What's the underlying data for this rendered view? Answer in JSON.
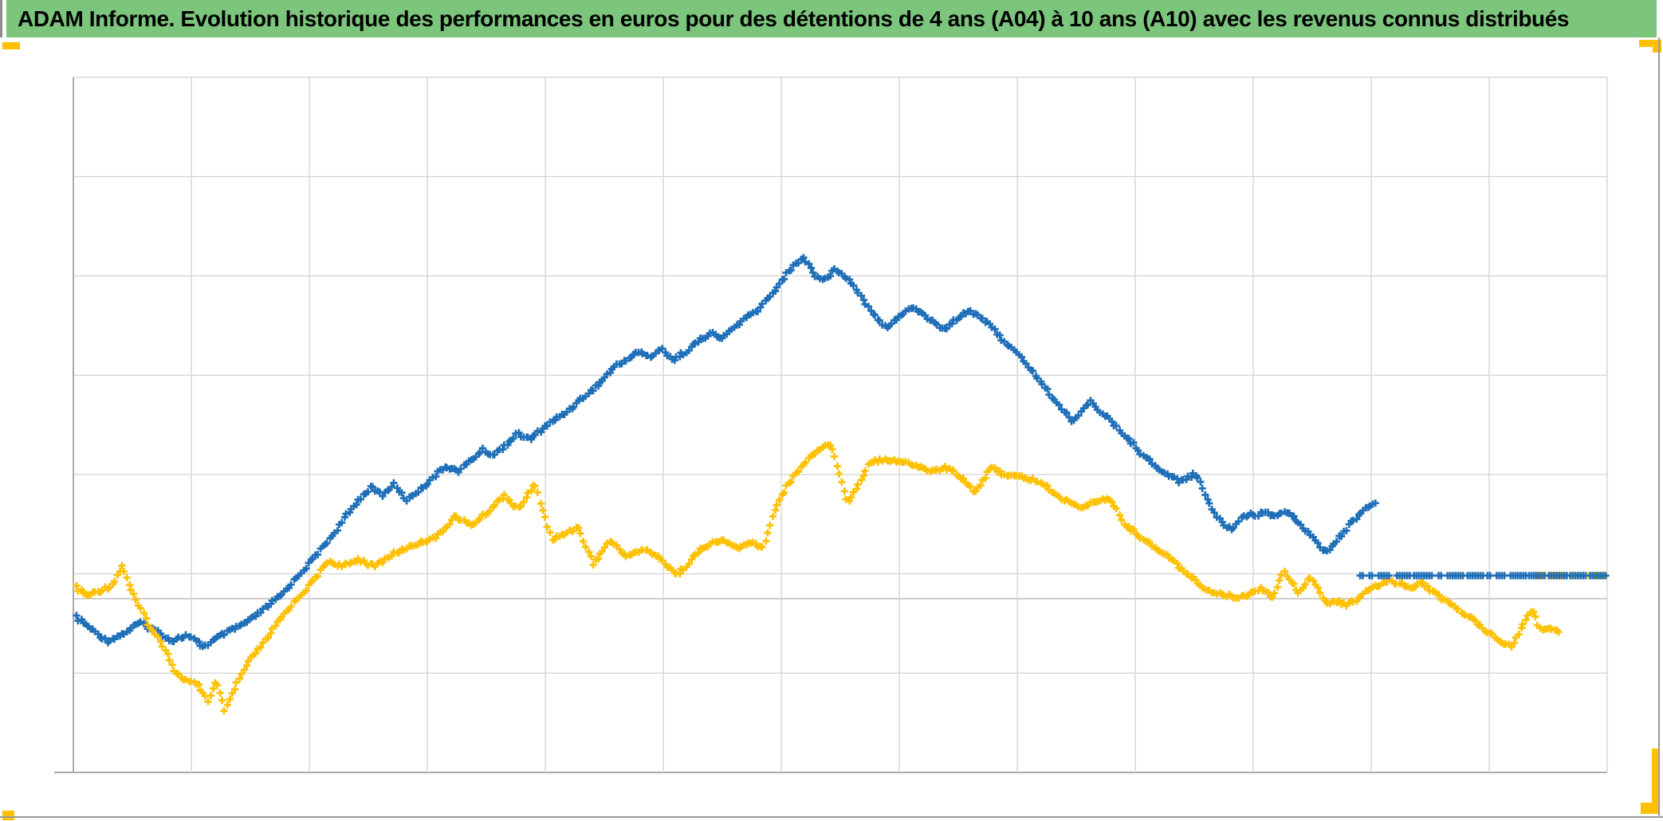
{
  "title": {
    "text": "ADAM Informe. Evolution historique des performances en euros pour des détentions de 4 ans (A04) à 10 ans (A10) avec les revenus connus distribués"
  },
  "colors": {
    "header_green": "#7CC57C",
    "title_text": "#000000",
    "series_blue": "#1E6FB8",
    "series_gold": "#FFC000",
    "gridline": "#D6D6D6",
    "plot_border": "#ABABAB",
    "zero_axis": "#C4C4C4",
    "selection_yellow": "#FFC000",
    "window_edge": "#9B9B9B"
  },
  "chart_data": {
    "type": "scatter",
    "title": "",
    "xlabel": "",
    "ylabel": "",
    "x_axis_labels": [],
    "y_axis_labels": [],
    "legend": "none",
    "marker": "plus",
    "grid": {
      "h_gridlines": 8,
      "v_gridlines": 14,
      "zero_axis_pct": 75.0
    },
    "flat_row_pct": 71.7,
    "series": [
      {
        "name": "blue",
        "points": [
          [
            0.2,
            77.7
          ],
          [
            1.2,
            79.4
          ],
          [
            2.2,
            81.1
          ],
          [
            3.3,
            80.0
          ],
          [
            4.3,
            78.5
          ],
          [
            5.4,
            79.6
          ],
          [
            6.4,
            81.1
          ],
          [
            7.4,
            80.3
          ],
          [
            8.5,
            81.9
          ],
          [
            9.5,
            80.5
          ],
          [
            10.6,
            79.2
          ],
          [
            11.6,
            78.0
          ],
          [
            12.6,
            76.2
          ],
          [
            13.7,
            74.2
          ],
          [
            14.7,
            71.6
          ],
          [
            15.7,
            69.1
          ],
          [
            16.8,
            66.2
          ],
          [
            17.8,
            63.1
          ],
          [
            18.6,
            60.8
          ],
          [
            19.4,
            59.0
          ],
          [
            20.2,
            60.1
          ],
          [
            20.9,
            58.5
          ],
          [
            21.7,
            60.8
          ],
          [
            22.8,
            59.0
          ],
          [
            23.5,
            57.4
          ],
          [
            24.3,
            55.9
          ],
          [
            25.1,
            56.7
          ],
          [
            25.9,
            55.1
          ],
          [
            26.7,
            53.6
          ],
          [
            27.4,
            54.4
          ],
          [
            28.2,
            52.8
          ],
          [
            29.0,
            51.3
          ],
          [
            29.8,
            52.1
          ],
          [
            30.6,
            50.5
          ],
          [
            31.3,
            49.4
          ],
          [
            32.1,
            48.2
          ],
          [
            32.9,
            46.7
          ],
          [
            33.7,
            45.2
          ],
          [
            34.5,
            43.6
          ],
          [
            35.2,
            41.8
          ],
          [
            36.0,
            40.7
          ],
          [
            36.8,
            39.5
          ],
          [
            37.6,
            40.2
          ],
          [
            38.4,
            39.1
          ],
          [
            39.1,
            40.7
          ],
          [
            39.9,
            39.5
          ],
          [
            40.7,
            38.1
          ],
          [
            41.5,
            36.8
          ],
          [
            42.3,
            37.6
          ],
          [
            43.0,
            36.1
          ],
          [
            43.8,
            34.7
          ],
          [
            44.6,
            33.6
          ],
          [
            45.4,
            31.5
          ],
          [
            46.2,
            29.2
          ],
          [
            46.8,
            27.6
          ],
          [
            47.2,
            26.7
          ],
          [
            47.6,
            25.9
          ],
          [
            48.0,
            27.3
          ],
          [
            48.4,
            28.5
          ],
          [
            48.9,
            29.2
          ],
          [
            49.3,
            28.4
          ],
          [
            49.7,
            27.6
          ],
          [
            50.1,
            28.1
          ],
          [
            50.5,
            29.0
          ],
          [
            50.9,
            30.1
          ],
          [
            51.4,
            31.5
          ],
          [
            51.8,
            33.0
          ],
          [
            52.2,
            34.1
          ],
          [
            52.6,
            35.1
          ],
          [
            53.0,
            35.9
          ],
          [
            53.4,
            35.3
          ],
          [
            53.8,
            34.5
          ],
          [
            54.3,
            33.8
          ],
          [
            54.7,
            33.0
          ],
          [
            55.1,
            33.6
          ],
          [
            55.5,
            34.2
          ],
          [
            55.9,
            34.9
          ],
          [
            56.3,
            35.6
          ],
          [
            56.8,
            36.3
          ],
          [
            57.2,
            35.6
          ],
          [
            57.6,
            34.7
          ],
          [
            58.0,
            34.0
          ],
          [
            58.4,
            33.6
          ],
          [
            58.8,
            34.0
          ],
          [
            59.3,
            34.7
          ],
          [
            59.7,
            35.6
          ],
          [
            60.1,
            36.5
          ],
          [
            60.5,
            37.5
          ],
          [
            60.9,
            38.4
          ],
          [
            61.3,
            39.3
          ],
          [
            61.7,
            40.2
          ],
          [
            62.2,
            41.4
          ],
          [
            62.6,
            42.5
          ],
          [
            63.0,
            43.6
          ],
          [
            63.4,
            44.8
          ],
          [
            63.8,
            45.9
          ],
          [
            64.2,
            47.1
          ],
          [
            64.7,
            48.2
          ],
          [
            65.1,
            49.4
          ],
          [
            65.5,
            48.7
          ],
          [
            65.9,
            47.5
          ],
          [
            66.3,
            46.7
          ],
          [
            66.7,
            47.5
          ],
          [
            67.2,
            48.5
          ],
          [
            67.6,
            49.4
          ],
          [
            68.0,
            50.3
          ],
          [
            68.4,
            51.3
          ],
          [
            68.8,
            52.1
          ],
          [
            69.2,
            53.0
          ],
          [
            69.6,
            54.0
          ],
          [
            70.1,
            54.9
          ],
          [
            70.5,
            55.8
          ],
          [
            70.9,
            56.5
          ],
          [
            71.3,
            57.2
          ],
          [
            71.7,
            57.6
          ],
          [
            72.1,
            58.1
          ],
          [
            72.6,
            57.6
          ],
          [
            73.0,
            57.2
          ],
          [
            73.4,
            57.6
          ],
          [
            73.8,
            59.9
          ],
          [
            74.2,
            61.7
          ],
          [
            74.6,
            63.3
          ],
          [
            75.1,
            64.5
          ],
          [
            75.5,
            65.1
          ],
          [
            75.9,
            63.9
          ],
          [
            76.3,
            63.1
          ],
          [
            76.7,
            62.8
          ],
          [
            77.1,
            63.1
          ],
          [
            77.5,
            62.4
          ],
          [
            78.0,
            62.8
          ],
          [
            78.4,
            63.1
          ],
          [
            78.8,
            62.8
          ],
          [
            79.2,
            62.4
          ],
          [
            79.6,
            63.3
          ],
          [
            80.0,
            64.3
          ],
          [
            80.5,
            65.4
          ],
          [
            80.9,
            66.6
          ],
          [
            81.3,
            67.7
          ],
          [
            81.7,
            68.2
          ],
          [
            82.1,
            67.5
          ],
          [
            82.5,
            66.3
          ],
          [
            83.0,
            65.0
          ],
          [
            83.4,
            63.8
          ],
          [
            83.8,
            62.9
          ],
          [
            84.2,
            62.2
          ],
          [
            84.6,
            61.7
          ],
          [
            84.9,
            61.5
          ]
        ],
        "flat_segments": [
          [
            83.9,
            84.2
          ],
          [
            84.5,
            84.7
          ],
          [
            85.1,
            85.9
          ],
          [
            86.3,
            87.2
          ],
          [
            87.4,
            88.6
          ],
          [
            89.0,
            89.3
          ],
          [
            89.6,
            90.7
          ],
          [
            90.9,
            91.9
          ],
          [
            92.2,
            92.5
          ],
          [
            92.8,
            93.4
          ],
          [
            93.7,
            94.7
          ],
          [
            94.9,
            95.9
          ],
          [
            96.2,
            97.4
          ],
          [
            97.6,
            98.7
          ],
          [
            98.9,
            100.0
          ]
        ]
      },
      {
        "name": "gold",
        "points": [
          [
            0.2,
            73.4
          ],
          [
            0.9,
            74.6
          ],
          [
            1.7,
            73.9
          ],
          [
            2.5,
            73.1
          ],
          [
            3.2,
            70.2
          ],
          [
            3.7,
            73.4
          ],
          [
            4.3,
            76.2
          ],
          [
            5.1,
            79.4
          ],
          [
            5.9,
            81.9
          ],
          [
            6.7,
            85.7
          ],
          [
            7.4,
            86.8
          ],
          [
            8.2,
            87.6
          ],
          [
            8.8,
            89.7
          ],
          [
            9.3,
            86.9
          ],
          [
            9.9,
            91.2
          ],
          [
            10.6,
            87.4
          ],
          [
            11.3,
            84.5
          ],
          [
            12.4,
            81.4
          ],
          [
            13.4,
            78.2
          ],
          [
            14.6,
            75.0
          ],
          [
            15.7,
            72.3
          ],
          [
            16.6,
            69.6
          ],
          [
            17.6,
            70.4
          ],
          [
            18.6,
            69.3
          ],
          [
            19.6,
            70.4
          ],
          [
            20.7,
            68.8
          ],
          [
            21.7,
            67.7
          ],
          [
            22.8,
            66.8
          ],
          [
            23.8,
            65.9
          ],
          [
            24.9,
            63.1
          ],
          [
            25.9,
            64.5
          ],
          [
            26.9,
            62.8
          ],
          [
            28.1,
            60.1
          ],
          [
            29.0,
            62.2
          ],
          [
            30.1,
            58.5
          ],
          [
            31.2,
            66.6
          ],
          [
            32.2,
            65.4
          ],
          [
            32.9,
            64.7
          ],
          [
            33.9,
            70.0
          ],
          [
            35.0,
            66.6
          ],
          [
            36.0,
            68.8
          ],
          [
            37.4,
            67.9
          ],
          [
            38.4,
            69.6
          ],
          [
            39.4,
            71.6
          ],
          [
            40.4,
            69.1
          ],
          [
            41.2,
            67.4
          ],
          [
            42.3,
            66.6
          ],
          [
            43.3,
            67.7
          ],
          [
            44.3,
            67.0
          ],
          [
            45.0,
            67.7
          ],
          [
            45.4,
            64.5
          ],
          [
            45.7,
            62.2
          ],
          [
            46.4,
            59.3
          ],
          [
            47.4,
            56.2
          ],
          [
            48.2,
            54.2
          ],
          [
            49.3,
            52.6
          ],
          [
            49.9,
            56.5
          ],
          [
            50.5,
            61.3
          ],
          [
            51.4,
            57.6
          ],
          [
            51.9,
            55.3
          ],
          [
            52.9,
            54.9
          ],
          [
            54.0,
            55.3
          ],
          [
            55.0,
            55.9
          ],
          [
            56.0,
            56.7
          ],
          [
            56.8,
            56.2
          ],
          [
            57.4,
            56.7
          ],
          [
            58.1,
            57.9
          ],
          [
            58.8,
            59.7
          ],
          [
            59.4,
            57.6
          ],
          [
            59.9,
            56.2
          ],
          [
            60.6,
            57.0
          ],
          [
            61.2,
            57.4
          ],
          [
            62.0,
            57.6
          ],
          [
            63.0,
            58.2
          ],
          [
            63.7,
            59.3
          ],
          [
            64.3,
            60.5
          ],
          [
            65.1,
            61.1
          ],
          [
            65.7,
            62.0
          ],
          [
            66.4,
            61.3
          ],
          [
            67.1,
            60.5
          ],
          [
            67.8,
            61.3
          ],
          [
            68.5,
            64.3
          ],
          [
            69.2,
            65.4
          ],
          [
            69.9,
            66.6
          ],
          [
            70.7,
            67.9
          ],
          [
            71.3,
            68.8
          ],
          [
            72.1,
            70.4
          ],
          [
            72.9,
            71.9
          ],
          [
            73.7,
            73.4
          ],
          [
            74.5,
            74.2
          ],
          [
            75.3,
            74.6
          ],
          [
            76.0,
            74.8
          ],
          [
            76.8,
            74.2
          ],
          [
            77.4,
            73.4
          ],
          [
            78.2,
            74.8
          ],
          [
            78.9,
            71.1
          ],
          [
            79.5,
            72.7
          ],
          [
            79.9,
            74.2
          ],
          [
            80.6,
            71.9
          ],
          [
            81.2,
            73.9
          ],
          [
            81.7,
            75.7
          ],
          [
            82.3,
            75.4
          ],
          [
            83.1,
            75.9
          ],
          [
            83.7,
            75.0
          ],
          [
            84.4,
            73.9
          ],
          [
            85.1,
            73.1
          ],
          [
            85.8,
            72.3
          ],
          [
            86.5,
            72.9
          ],
          [
            87.2,
            73.4
          ],
          [
            87.9,
            72.7
          ],
          [
            88.6,
            73.9
          ],
          [
            89.2,
            74.9
          ],
          [
            89.9,
            75.9
          ],
          [
            90.6,
            77.2
          ],
          [
            91.4,
            78.2
          ],
          [
            92.0,
            79.4
          ],
          [
            92.7,
            80.5
          ],
          [
            93.3,
            81.4
          ],
          [
            93.8,
            81.9
          ],
          [
            94.2,
            80.0
          ],
          [
            94.8,
            77.7
          ],
          [
            95.1,
            76.5
          ],
          [
            95.5,
            78.8
          ],
          [
            95.9,
            79.6
          ],
          [
            96.2,
            79.2
          ],
          [
            96.6,
            79.6
          ],
          [
            96.9,
            80.1
          ]
        ],
        "flat_segments": [
          [
            95.3,
            96.1
          ],
          [
            96.3,
            97.3
          ],
          [
            97.6,
            98.5
          ],
          [
            98.8,
            99.8
          ]
        ]
      }
    ]
  }
}
